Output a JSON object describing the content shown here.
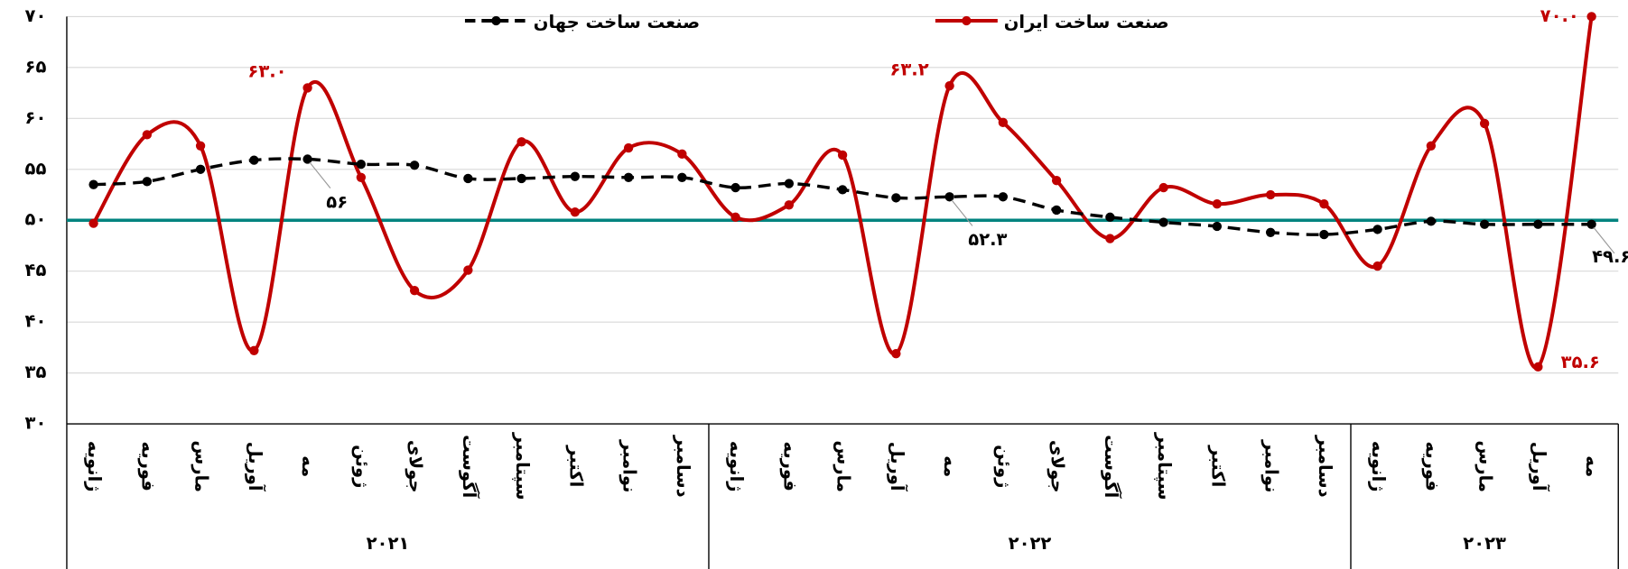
{
  "chart_data": {
    "type": "line",
    "ylim": [
      30,
      70
    ],
    "yticks": [
      {
        "value": 30,
        "label": "۳۰"
      },
      {
        "value": 35,
        "label": "۳۵"
      },
      {
        "value": 40,
        "label": "۴۰"
      },
      {
        "value": 45,
        "label": "۴۵"
      },
      {
        "value": 50,
        "label": "۵۰"
      },
      {
        "value": 55,
        "label": "۵۵"
      },
      {
        "value": 60,
        "label": "۶۰"
      },
      {
        "value": 65,
        "label": "۶۵"
      },
      {
        "value": 70,
        "label": "۷۰"
      }
    ],
    "grid": true,
    "reference_line": {
      "value": 50,
      "color": "#00837f"
    },
    "groups": [
      {
        "name": "۲۰۲۱",
        "categories": [
          "ژانویه",
          "فوریه",
          "مارس",
          "آوریل",
          "مه",
          "ژوئن",
          "جولای",
          "آگوست",
          "سپتامبر",
          "اکتبر",
          "نوامبر",
          "دسامبر"
        ]
      },
      {
        "name": "۲۰۲۲",
        "categories": [
          "ژانویه",
          "فوریه",
          "مارس",
          "آوریل",
          "مه",
          "ژوئن",
          "جولای",
          "آگوست",
          "سپتامبر",
          "اکتبر",
          "نوامبر",
          "دسامبر"
        ]
      },
      {
        "name": "۲۰۲۳",
        "categories": [
          "ژانویه",
          "فوریه",
          "مارس",
          "آوریل",
          "مه"
        ]
      }
    ],
    "series": [
      {
        "name": "صنعت ساخت ایران",
        "color": "#c00000",
        "dashed": false,
        "values": [
          49.7,
          58.4,
          57.3,
          37.2,
          63.0,
          54.2,
          43.1,
          45.1,
          57.7,
          50.8,
          57.1,
          56.5,
          50.3,
          51.5,
          56.4,
          36.9,
          63.2,
          59.6,
          53.9,
          48.2,
          53.2,
          51.6,
          52.5,
          51.6,
          45.5,
          57.3,
          59.5,
          35.6,
          70.0
        ],
        "value_labels": [
          null,
          null,
          null,
          null,
          "۶۳.۰",
          null,
          null,
          null,
          null,
          null,
          null,
          null,
          null,
          null,
          null,
          null,
          "۶۳.۲",
          null,
          null,
          null,
          null,
          null,
          null,
          null,
          null,
          null,
          null,
          "۳۵.۶",
          "۷۰.۰"
        ]
      },
      {
        "name": "صنعت ساخت جهان",
        "color": "#000000",
        "dashed": true,
        "values": [
          53.5,
          53.8,
          55.0,
          55.9,
          56,
          55.5,
          55.4,
          54.1,
          54.1,
          54.3,
          54.2,
          54.2,
          53.2,
          53.6,
          53.0,
          52.2,
          52.3,
          52.3,
          51.0,
          50.3,
          49.8,
          49.4,
          48.8,
          48.6,
          49.1,
          49.9,
          49.6,
          49.6,
          49.6
        ],
        "value_labels": [
          null,
          null,
          null,
          null,
          "۵۶",
          null,
          null,
          null,
          null,
          null,
          null,
          null,
          null,
          null,
          null,
          null,
          "۵۲.۳",
          null,
          null,
          null,
          null,
          null,
          null,
          null,
          null,
          null,
          null,
          null,
          "۴۹.۶"
        ]
      }
    ]
  }
}
